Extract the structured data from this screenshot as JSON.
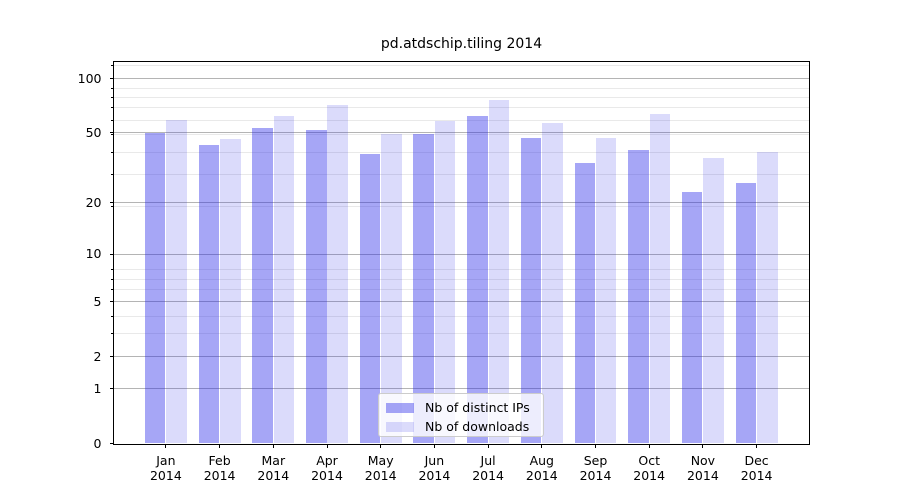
{
  "title": "pd.atdschip.tiling 2014",
  "chart_data": {
    "type": "bar",
    "title": "pd.atdschip.tiling 2014",
    "x_year": "2014",
    "x_months": [
      "Jan",
      "Feb",
      "Mar",
      "Apr",
      "May",
      "Jun",
      "Jul",
      "Aug",
      "Sep",
      "Oct",
      "Nov",
      "Dec"
    ],
    "categories": [
      "Jan 2014",
      "Feb 2014",
      "Mar 2014",
      "Apr 2014",
      "May 2014",
      "Jun 2014",
      "Jul 2014",
      "Aug 2014",
      "Sep 2014",
      "Oct 2014",
      "Nov 2014",
      "Dec 2014"
    ],
    "series": [
      {
        "name": "Nb of distinct IPs",
        "values": [
          50,
          43,
          53,
          52,
          38,
          49,
          62,
          47,
          34,
          40,
          23,
          26
        ]
      },
      {
        "name": "Nb of downloads",
        "values": [
          59,
          46,
          62,
          72,
          49,
          58,
          76,
          57,
          47,
          64,
          36,
          39
        ]
      }
    ],
    "yscale": "log10(1+y)",
    "ylim": [
      0,
      124
    ],
    "yticks": [
      0,
      1,
      2,
      5,
      10,
      20,
      50,
      100
    ],
    "yticks_minor": [
      3,
      4,
      6,
      7,
      8,
      19,
      29,
      39,
      49,
      59,
      69,
      79,
      89,
      119
    ],
    "grid": true,
    "legend_position": "lower center"
  },
  "legend": {
    "items": [
      {
        "label": "Nb of distinct IPs",
        "color": "rgba(32,32,232,0.40)"
      },
      {
        "label": "Nb of downloads",
        "color": "rgba(32,32,232,0.16)"
      }
    ]
  },
  "colors": {
    "distinct_ips": "rgba(32,32,232,0.40)",
    "downloads": "rgba(32,32,232,0.16)",
    "grid_major": "#b4b4b4",
    "grid_minor": "#e9e9e9",
    "axis": "#000000",
    "background": "#ffffff"
  }
}
